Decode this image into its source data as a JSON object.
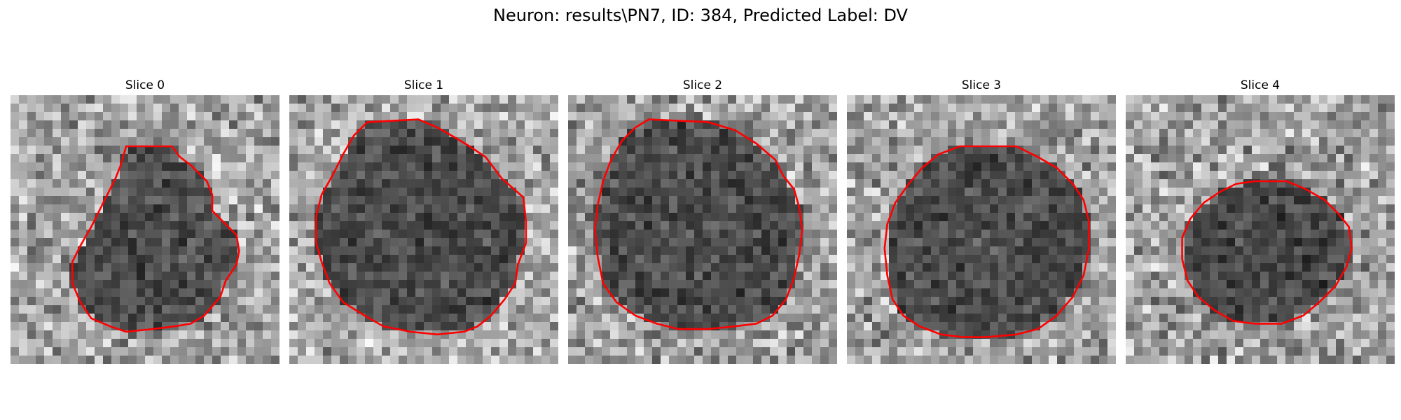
{
  "figure": {
    "title": "Neuron: results\\PN7, ID: 384, Predicted Label: DV",
    "contour_color": "#ff0000",
    "slices": [
      {
        "title": "Slice 0",
        "contour": [
          [
            0.43,
            0.19
          ],
          [
            0.6,
            0.19
          ],
          [
            0.63,
            0.23
          ],
          [
            0.67,
            0.26
          ],
          [
            0.7,
            0.29
          ],
          [
            0.73,
            0.32
          ],
          [
            0.75,
            0.37
          ],
          [
            0.75,
            0.43
          ],
          [
            0.84,
            0.52
          ],
          [
            0.85,
            0.58
          ],
          [
            0.84,
            0.63
          ],
          [
            0.8,
            0.69
          ],
          [
            0.78,
            0.75
          ],
          [
            0.72,
            0.82
          ],
          [
            0.67,
            0.85
          ],
          [
            0.61,
            0.86
          ],
          [
            0.53,
            0.87
          ],
          [
            0.43,
            0.88
          ],
          [
            0.37,
            0.86
          ],
          [
            0.3,
            0.83
          ],
          [
            0.26,
            0.77
          ],
          [
            0.23,
            0.7
          ],
          [
            0.23,
            0.62
          ],
          [
            0.26,
            0.56
          ],
          [
            0.3,
            0.49
          ],
          [
            0.33,
            0.43
          ],
          [
            0.36,
            0.37
          ],
          [
            0.39,
            0.31
          ],
          [
            0.41,
            0.26
          ]
        ],
        "fill": [
          0.3,
          0.28
        ],
        "bg": 0.65
      },
      {
        "title": "Slice 1",
        "contour": [
          [
            0.29,
            0.1
          ],
          [
            0.48,
            0.09
          ],
          [
            0.55,
            0.12
          ],
          [
            0.62,
            0.16
          ],
          [
            0.67,
            0.19
          ],
          [
            0.73,
            0.23
          ],
          [
            0.79,
            0.31
          ],
          [
            0.87,
            0.38
          ],
          [
            0.88,
            0.47
          ],
          [
            0.88,
            0.55
          ],
          [
            0.85,
            0.63
          ],
          [
            0.84,
            0.7
          ],
          [
            0.8,
            0.76
          ],
          [
            0.75,
            0.82
          ],
          [
            0.7,
            0.86
          ],
          [
            0.65,
            0.88
          ],
          [
            0.55,
            0.89
          ],
          [
            0.45,
            0.88
          ],
          [
            0.35,
            0.86
          ],
          [
            0.28,
            0.82
          ],
          [
            0.2,
            0.77
          ],
          [
            0.15,
            0.7
          ],
          [
            0.12,
            0.62
          ],
          [
            0.1,
            0.55
          ],
          [
            0.1,
            0.45
          ],
          [
            0.12,
            0.37
          ],
          [
            0.16,
            0.3
          ],
          [
            0.2,
            0.22
          ],
          [
            0.24,
            0.15
          ]
        ],
        "fill": [
          0.3,
          0.27
        ],
        "bg": 0.66
      },
      {
        "title": "Slice 2",
        "contour": [
          [
            0.3,
            0.09
          ],
          [
            0.52,
            0.1
          ],
          [
            0.62,
            0.13
          ],
          [
            0.7,
            0.18
          ],
          [
            0.77,
            0.24
          ],
          [
            0.8,
            0.3
          ],
          [
            0.84,
            0.35
          ],
          [
            0.86,
            0.42
          ],
          [
            0.87,
            0.5
          ],
          [
            0.86,
            0.59
          ],
          [
            0.84,
            0.68
          ],
          [
            0.81,
            0.76
          ],
          [
            0.76,
            0.82
          ],
          [
            0.7,
            0.85
          ],
          [
            0.62,
            0.86
          ],
          [
            0.52,
            0.87
          ],
          [
            0.41,
            0.87
          ],
          [
            0.33,
            0.85
          ],
          [
            0.25,
            0.82
          ],
          [
            0.18,
            0.77
          ],
          [
            0.13,
            0.7
          ],
          [
            0.11,
            0.6
          ],
          [
            0.1,
            0.5
          ],
          [
            0.11,
            0.41
          ],
          [
            0.13,
            0.32
          ],
          [
            0.16,
            0.24
          ],
          [
            0.2,
            0.17
          ],
          [
            0.25,
            0.12
          ]
        ],
        "fill": [
          0.3,
          0.28
        ],
        "bg": 0.62
      },
      {
        "title": "Slice 3",
        "contour": [
          [
            0.42,
            0.19
          ],
          [
            0.63,
            0.19
          ],
          [
            0.71,
            0.23
          ],
          [
            0.78,
            0.27
          ],
          [
            0.84,
            0.33
          ],
          [
            0.88,
            0.39
          ],
          [
            0.9,
            0.47
          ],
          [
            0.9,
            0.57
          ],
          [
            0.88,
            0.67
          ],
          [
            0.84,
            0.75
          ],
          [
            0.78,
            0.82
          ],
          [
            0.71,
            0.87
          ],
          [
            0.63,
            0.89
          ],
          [
            0.52,
            0.9
          ],
          [
            0.43,
            0.9
          ],
          [
            0.35,
            0.89
          ],
          [
            0.27,
            0.86
          ],
          [
            0.21,
            0.82
          ],
          [
            0.17,
            0.76
          ],
          [
            0.15,
            0.67
          ],
          [
            0.14,
            0.57
          ],
          [
            0.15,
            0.48
          ],
          [
            0.18,
            0.4
          ],
          [
            0.23,
            0.33
          ],
          [
            0.28,
            0.27
          ],
          [
            0.34,
            0.22
          ]
        ],
        "fill": [
          0.3,
          0.27
        ],
        "bg": 0.64
      },
      {
        "title": "Slice 4",
        "contour": [
          [
            0.48,
            0.32
          ],
          [
            0.6,
            0.32
          ],
          [
            0.67,
            0.35
          ],
          [
            0.74,
            0.39
          ],
          [
            0.79,
            0.44
          ],
          [
            0.83,
            0.49
          ],
          [
            0.84,
            0.57
          ],
          [
            0.82,
            0.64
          ],
          [
            0.78,
            0.71
          ],
          [
            0.72,
            0.77
          ],
          [
            0.66,
            0.82
          ],
          [
            0.58,
            0.85
          ],
          [
            0.48,
            0.85
          ],
          [
            0.4,
            0.84
          ],
          [
            0.33,
            0.8
          ],
          [
            0.27,
            0.75
          ],
          [
            0.23,
            0.69
          ],
          [
            0.21,
            0.61
          ],
          [
            0.21,
            0.53
          ],
          [
            0.24,
            0.46
          ],
          [
            0.29,
            0.4
          ],
          [
            0.35,
            0.36
          ],
          [
            0.41,
            0.33
          ]
        ],
        "fill": [
          0.28,
          0.25
        ],
        "bg": 0.63
      }
    ]
  }
}
